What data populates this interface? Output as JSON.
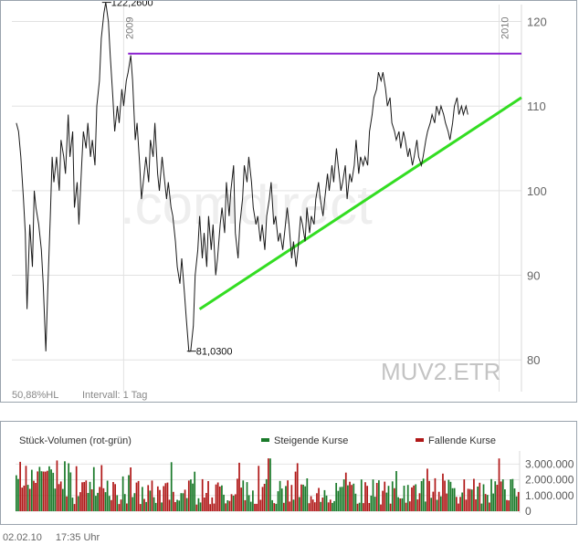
{
  "chart_data": [
    {
      "type": "line",
      "symbol": "MUV2.ETR",
      "watermark": ".comdirect",
      "year_labels": [
        {
          "label": "2009",
          "x": 25
        },
        {
          "label": "2010",
          "x": 109
        }
      ],
      "ylim": [
        77,
        122
      ],
      "y_ticks": [
        80,
        90,
        100,
        110,
        120
      ],
      "grid": true,
      "series": [
        {
          "values": [
            [
              1,
              108
            ],
            [
              1.5,
              107
            ],
            [
              2,
              104
            ],
            [
              2.6,
              99
            ],
            [
              3,
              95
            ],
            [
              3.4,
              86
            ],
            [
              4,
              96
            ],
            [
              4.6,
              91
            ],
            [
              5,
              100
            ],
            [
              5.4,
              98
            ],
            [
              6,
              96
            ],
            [
              6.6,
              93
            ],
            [
              7,
              89
            ],
            [
              7.6,
              81
            ],
            [
              8,
              88
            ],
            [
              8.6,
              97
            ],
            [
              9,
              104
            ],
            [
              9.4,
              101
            ],
            [
              10,
              104
            ],
            [
              10.6,
              100
            ],
            [
              11,
              106
            ],
            [
              11.6,
              104
            ],
            [
              12,
              102
            ],
            [
              12.6,
              109
            ],
            [
              13,
              104
            ],
            [
              13.6,
              107
            ],
            [
              14,
              98
            ],
            [
              14.6,
              101
            ],
            [
              15,
              96
            ],
            [
              15.6,
              103
            ],
            [
              16,
              107
            ],
            [
              16.6,
              105
            ],
            [
              17,
              108
            ],
            [
              17.6,
              104
            ],
            [
              18,
              106
            ],
            [
              18.6,
              103
            ],
            [
              19,
              110
            ],
            [
              19.6,
              113
            ],
            [
              20,
              118
            ],
            [
              20.6,
              121
            ],
            [
              21,
              122.26
            ],
            [
              21.6,
              120
            ],
            [
              22,
              116
            ],
            [
              22.6,
              111
            ],
            [
              23,
              107
            ],
            [
              23.6,
              110
            ],
            [
              24,
              108
            ],
            [
              24.6,
              112
            ],
            [
              25,
              110
            ],
            [
              25.6,
              113
            ],
            [
              26,
              114
            ],
            [
              26.6,
              116
            ],
            [
              27,
              113
            ],
            [
              27.6,
              106
            ],
            [
              28,
              108
            ],
            [
              28.6,
              103
            ],
            [
              29,
              99
            ],
            [
              29.6,
              102
            ],
            [
              30,
              104
            ],
            [
              30.6,
              101
            ],
            [
              31,
              106
            ],
            [
              31.6,
              104
            ],
            [
              32,
              108
            ],
            [
              32.6,
              102
            ],
            [
              33,
              100
            ],
            [
              33.6,
              104
            ],
            [
              34,
              102
            ],
            [
              34.6,
              99
            ],
            [
              35,
              101
            ],
            [
              35.6,
              98
            ],
            [
              36,
              97
            ],
            [
              36.6,
              94
            ],
            [
              37,
              91
            ],
            [
              37.6,
              89
            ],
            [
              38,
              92
            ],
            [
              38.6,
              88
            ],
            [
              39,
              85
            ],
            [
              39.6,
              81
            ],
            [
              40,
              81.03
            ],
            [
              40.6,
              84
            ],
            [
              41,
              90
            ],
            [
              41.6,
              93
            ],
            [
              42,
              97
            ],
            [
              42.6,
              92
            ],
            [
              43,
              95
            ],
            [
              43.6,
              91
            ],
            [
              44,
              97
            ],
            [
              44.6,
              93
            ],
            [
              45,
              96
            ],
            [
              45.6,
              90
            ],
            [
              46,
              92
            ],
            [
              46.6,
              96
            ],
            [
              47,
              98
            ],
            [
              47.6,
              95
            ],
            [
              48,
              101
            ],
            [
              48.6,
              97
            ],
            [
              49,
              100
            ],
            [
              49.6,
              103
            ],
            [
              50,
              95
            ],
            [
              50.6,
              92
            ],
            [
              51,
              96
            ],
            [
              51.6,
              99
            ],
            [
              52,
              103
            ],
            [
              52.6,
              101
            ],
            [
              53,
              104
            ],
            [
              53.6,
              101
            ],
            [
              54,
              98
            ],
            [
              54.6,
              96
            ],
            [
              55,
              97
            ],
            [
              55.6,
              94
            ],
            [
              56,
              96
            ],
            [
              56.6,
              93
            ],
            [
              57,
              97
            ],
            [
              57.6,
              99
            ],
            [
              58,
              101
            ],
            [
              58.6,
              96
            ],
            [
              59,
              97
            ],
            [
              59.6,
              94
            ],
            [
              60,
              95
            ],
            [
              60.6,
              93
            ],
            [
              61,
              95
            ],
            [
              61.6,
              98
            ],
            [
              62,
              96
            ],
            [
              62.6,
              92
            ],
            [
              63,
              94
            ],
            [
              63.6,
              91
            ],
            [
              64,
              93
            ],
            [
              64.6,
              97
            ],
            [
              65,
              96
            ],
            [
              65.6,
              94
            ],
            [
              66,
              98
            ],
            [
              66.6,
              95
            ],
            [
              67,
              97
            ],
            [
              67.6,
              96
            ],
            [
              68,
              99
            ],
            [
              68.6,
              101
            ],
            [
              69,
              99
            ],
            [
              69.6,
              97
            ],
            [
              70,
              99
            ],
            [
              70.6,
              102
            ],
            [
              71,
              100
            ],
            [
              71.6,
              103
            ],
            [
              72,
              101
            ],
            [
              72.6,
              105
            ],
            [
              73,
              103
            ],
            [
              73.6,
              100
            ],
            [
              74,
              101
            ],
            [
              74.6,
              103
            ],
            [
              75,
              99
            ],
            [
              75.6,
              102
            ],
            [
              76,
              101
            ],
            [
              76.6,
              103
            ],
            [
              77,
              106
            ],
            [
              77.6,
              102
            ],
            [
              78,
              104
            ],
            [
              78.6,
              103
            ],
            [
              79,
              104
            ],
            [
              79.6,
              103
            ],
            [
              80,
              107
            ],
            [
              80.6,
              109
            ],
            [
              81,
              111
            ],
            [
              81.6,
              112
            ],
            [
              82,
              114
            ],
            [
              82.6,
              113
            ],
            [
              83,
              114
            ],
            [
              83.6,
              112
            ],
            [
              84,
              110
            ],
            [
              84.6,
              111
            ],
            [
              85,
              108
            ],
            [
              85.6,
              107
            ],
            [
              86,
              106
            ],
            [
              86.6,
              107
            ],
            [
              87,
              105
            ],
            [
              87.6,
              107
            ],
            [
              88,
              106
            ],
            [
              88.6,
              104
            ],
            [
              89,
              105
            ],
            [
              89.6,
              103
            ],
            [
              90,
              104
            ],
            [
              90.6,
              106
            ],
            [
              91,
              104
            ],
            [
              91.6,
              103
            ],
            [
              92,
              104
            ],
            [
              92.6,
              106
            ],
            [
              93,
              107
            ],
            [
              93.6,
              108
            ],
            [
              94,
              109
            ],
            [
              94.6,
              108
            ],
            [
              95,
              110
            ],
            [
              95.6,
              109
            ],
            [
              96,
              110
            ],
            [
              96.6,
              109
            ],
            [
              97,
              108
            ],
            [
              97.6,
              107
            ],
            [
              98,
              106
            ],
            [
              98.6,
              108
            ],
            [
              99,
              110
            ],
            [
              99.6,
              111
            ],
            [
              100,
              109
            ],
            [
              100.6,
              110
            ],
            [
              101,
              109
            ],
            [
              101.6,
              110
            ],
            [
              102,
              109
            ]
          ]
        }
      ],
      "annotations": [
        {
          "label": "122,2600",
          "x": 21,
          "y": 122.26
        },
        {
          "label": "81,0300",
          "x": 40,
          "y": 81.03
        }
      ],
      "trendlines": [
        {
          "name": "resistance",
          "color": "#8b22d0",
          "from": [
            26,
            116.2
          ],
          "to": [
            114,
            116.2
          ]
        },
        {
          "name": "support",
          "color": "#33dd22",
          "from": [
            42,
            86
          ],
          "to": [
            114,
            111
          ]
        }
      ],
      "price_color": "#1a1a1a"
    },
    {
      "type": "bar",
      "title": "Stück-Volumen (rot-grün)",
      "legend": [
        {
          "label": "Steigende Kurse",
          "color": "#1a7a2a"
        },
        {
          "label": "Fallende Kurse",
          "color": "#b01818"
        }
      ],
      "ylim": [
        0,
        3600000
      ],
      "y_tick_values": [
        0,
        1000000,
        2000000,
        3000000
      ],
      "y_tick_labels": [
        "0",
        "1.000.000",
        "2.000.000",
        "3.000.000"
      ],
      "bar_count": 260,
      "seed": 17
    }
  ],
  "labels": {
    "hl_percent": "50,88%HL",
    "interval": "Intervall: 1 Tag",
    "date": "02.02.10",
    "time": "17:35 Uhr"
  }
}
